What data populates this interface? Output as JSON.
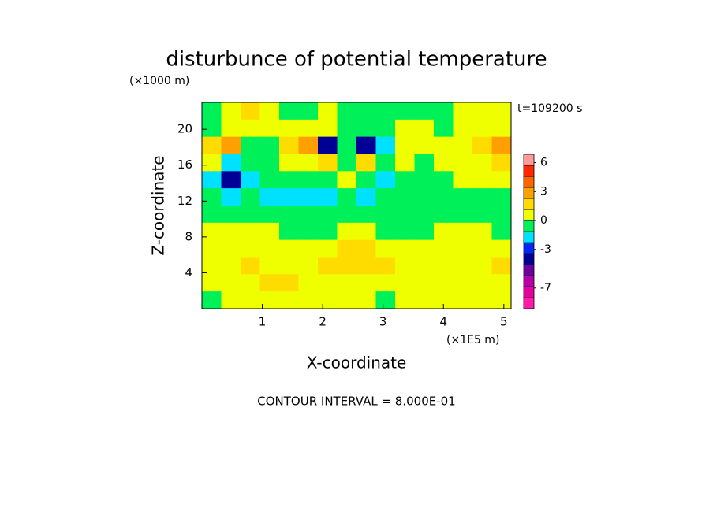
{
  "chart_data": {
    "type": "contour",
    "title": "disturbunce of potential temperature",
    "y_unit": "(×1000 m)",
    "x_unit": "(×1E5 m)",
    "time_label": "t=109200 s",
    "xlabel": "X-coordinate",
    "ylabel": "Z-coordinate",
    "footnote": "CONTOUR INTERVAL = 8.000E-01",
    "xlim": [
      0,
      5.12
    ],
    "xticks": [
      1,
      2,
      3,
      4,
      5
    ],
    "ylim": [
      0,
      23
    ],
    "yticks": [
      4,
      8,
      12,
      16,
      20
    ],
    "x": [
      0.16,
      0.48,
      0.8,
      1.12,
      1.44,
      1.76,
      2.08,
      2.4,
      2.72,
      3.04,
      3.36,
      3.68,
      4.0,
      4.32,
      4.64,
      4.96
    ],
    "y": [
      22.04,
      20.13,
      18.21,
      16.29,
      14.38,
      12.46,
      10.54,
      8.63,
      6.71,
      4.79,
      2.88,
      0.96
    ],
    "z": [
      [
        -0.5,
        0.5,
        1.7,
        0.5,
        -0.5,
        -0.5,
        0.5,
        -0.5,
        -0.5,
        -0.5,
        -0.5,
        -0.5,
        -0.5,
        0.5,
        0.5,
        0.5
      ],
      [
        -0.5,
        0.5,
        0.5,
        0.5,
        0.5,
        0.5,
        0.5,
        -0.5,
        -0.5,
        -0.5,
        0.5,
        0.5,
        -0.5,
        0.5,
        0.5,
        0.5
      ],
      [
        1.7,
        2.8,
        -0.5,
        -0.5,
        1.7,
        2.8,
        -3.8,
        -0.5,
        -3.8,
        -1.7,
        0.5,
        0.5,
        0.5,
        0.5,
        1.7,
        2.8
      ],
      [
        0.5,
        -1.7,
        -0.5,
        -0.5,
        0.5,
        0.5,
        1.7,
        -0.5,
        1.7,
        -0.5,
        0.5,
        -0.5,
        0.5,
        0.5,
        0.5,
        1.7
      ],
      [
        -1.7,
        -3.8,
        -1.7,
        -0.5,
        -0.5,
        -0.5,
        -0.5,
        0.5,
        -0.5,
        -1.7,
        -0.5,
        -0.5,
        -0.5,
        0.5,
        0.5,
        0.5
      ],
      [
        -0.5,
        -1.7,
        -0.5,
        -1.7,
        -1.7,
        -1.7,
        -1.7,
        -0.5,
        -1.7,
        -0.5,
        -0.5,
        -0.5,
        -0.5,
        -0.5,
        -0.5,
        -0.5
      ],
      [
        -0.5,
        -0.5,
        -0.5,
        -0.5,
        -0.5,
        -0.5,
        -0.5,
        -0.5,
        -0.5,
        -0.5,
        -0.5,
        -0.5,
        -0.5,
        -0.5,
        -0.5,
        -0.5
      ],
      [
        0.5,
        0.5,
        0.5,
        0.5,
        -0.5,
        -0.5,
        -0.5,
        0.5,
        0.5,
        -0.5,
        -0.5,
        -0.5,
        0.5,
        0.5,
        0.5,
        -0.5
      ],
      [
        0.5,
        0.5,
        0.5,
        0.5,
        0.5,
        0.5,
        0.5,
        1.7,
        1.7,
        0.5,
        0.5,
        0.5,
        0.5,
        0.5,
        0.5,
        0.5
      ],
      [
        0.5,
        0.5,
        1.7,
        0.5,
        0.5,
        0.5,
        1.7,
        1.7,
        1.7,
        1.7,
        0.5,
        0.5,
        0.5,
        0.5,
        0.5,
        1.7
      ],
      [
        0.5,
        0.5,
        0.5,
        1.7,
        1.7,
        0.5,
        0.5,
        0.5,
        0.5,
        0.5,
        0.5,
        0.5,
        0.5,
        0.5,
        0.5,
        0.5
      ],
      [
        -0.5,
        0.5,
        0.5,
        0.5,
        0.5,
        0.5,
        0.5,
        0.5,
        0.5,
        -0.5,
        0.5,
        0.5,
        0.5,
        0.5,
        0.5,
        0.5
      ]
    ],
    "colorbar": {
      "levels": [
        -9.14,
        -8,
        -6.86,
        -5.71,
        -4.57,
        -3.43,
        -2.29,
        -1.14,
        0,
        1.14,
        2.29,
        3.43,
        4.57,
        5.71,
        6.86
      ],
      "colors": [
        "#ff1ca8",
        "#e600a0",
        "#b400a8",
        "#6e00a0",
        "#000096",
        "#0028f0",
        "#00e1ff",
        "#00f05a",
        "#f0ff00",
        "#ffdc00",
        "#ffa000",
        "#ff6400",
        "#ff2800",
        "#ff9a9a"
      ],
      "ticks": [
        -7,
        -3,
        0,
        3,
        6
      ]
    }
  }
}
